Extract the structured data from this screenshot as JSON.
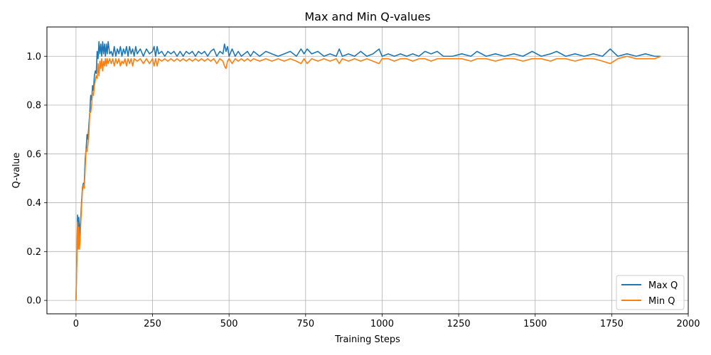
{
  "chart_data": {
    "type": "line",
    "title": "Max and Min Q-values",
    "xlabel": "Training Steps",
    "ylabel": "Q-value",
    "xlim": [
      -95,
      2000
    ],
    "ylim": [
      -0.055,
      1.12
    ],
    "x_ticks": [
      0,
      250,
      500,
      750,
      1000,
      1250,
      1500,
      1750,
      2000
    ],
    "y_ticks": [
      0.0,
      0.2,
      0.4,
      0.6,
      0.8,
      1.0
    ],
    "x_tick_labels": [
      "0",
      "250",
      "500",
      "750",
      "1000",
      "1250",
      "1500",
      "1750",
      "2000"
    ],
    "y_tick_labels": [
      "0.0",
      "0.2",
      "0.4",
      "0.6",
      "0.8",
      "1.0"
    ],
    "grid": true,
    "legend_position": "lower-right",
    "x_max": 1910,
    "series": [
      {
        "name": "Max Q",
        "color": "#1f77b4",
        "points": [
          [
            0,
            0.0
          ],
          [
            3,
            0.2
          ],
          [
            5,
            0.35
          ],
          [
            7,
            0.3
          ],
          [
            9,
            0.34
          ],
          [
            11,
            0.26
          ],
          [
            13,
            0.3
          ],
          [
            15,
            0.33
          ],
          [
            18,
            0.4
          ],
          [
            21,
            0.46
          ],
          [
            24,
            0.48
          ],
          [
            27,
            0.48
          ],
          [
            30,
            0.58
          ],
          [
            33,
            0.62
          ],
          [
            36,
            0.68
          ],
          [
            39,
            0.66
          ],
          [
            42,
            0.72
          ],
          [
            45,
            0.77
          ],
          [
            48,
            0.84
          ],
          [
            51,
            0.82
          ],
          [
            54,
            0.88
          ],
          [
            57,
            0.86
          ],
          [
            60,
            0.92
          ],
          [
            63,
            0.94
          ],
          [
            66,
            0.93
          ],
          [
            69,
            1.02
          ],
          [
            72,
            0.99
          ],
          [
            75,
            1.06
          ],
          [
            78,
            1.01
          ],
          [
            81,
            1.05
          ],
          [
            84,
            1.0
          ],
          [
            87,
            1.06
          ],
          [
            90,
            1.01
          ],
          [
            93,
            1.05
          ],
          [
            96,
            1.0
          ],
          [
            99,
            1.05
          ],
          [
            102,
            1.01
          ],
          [
            105,
            1.06
          ],
          [
            110,
            1.01
          ],
          [
            115,
            1.02
          ],
          [
            120,
            1.0
          ],
          [
            125,
            1.04
          ],
          [
            130,
            1.0
          ],
          [
            135,
            1.03
          ],
          [
            140,
            1.01
          ],
          [
            145,
            1.04
          ],
          [
            150,
            1.0
          ],
          [
            155,
            1.03
          ],
          [
            160,
            1.01
          ],
          [
            165,
            1.04
          ],
          [
            170,
            1.0
          ],
          [
            175,
            1.04
          ],
          [
            180,
            1.01
          ],
          [
            185,
            1.03
          ],
          [
            190,
            1.0
          ],
          [
            195,
            1.04
          ],
          [
            200,
            1.01
          ],
          [
            210,
            1.03
          ],
          [
            220,
            1.0
          ],
          [
            230,
            1.03
          ],
          [
            240,
            1.01
          ],
          [
            250,
            1.02
          ],
          [
            255,
            1.04
          ],
          [
            260,
            1.0
          ],
          [
            265,
            1.04
          ],
          [
            270,
            1.01
          ],
          [
            280,
            1.02
          ],
          [
            290,
            1.0
          ],
          [
            300,
            1.02
          ],
          [
            310,
            1.01
          ],
          [
            320,
            1.02
          ],
          [
            330,
            1.0
          ],
          [
            340,
            1.02
          ],
          [
            350,
            1.0
          ],
          [
            360,
            1.02
          ],
          [
            370,
            1.01
          ],
          [
            380,
            1.02
          ],
          [
            390,
            1.0
          ],
          [
            400,
            1.02
          ],
          [
            410,
            1.01
          ],
          [
            420,
            1.02
          ],
          [
            430,
            1.0
          ],
          [
            440,
            1.02
          ],
          [
            450,
            1.03
          ],
          [
            460,
            1.0
          ],
          [
            470,
            1.02
          ],
          [
            480,
            1.01
          ],
          [
            485,
            1.05
          ],
          [
            490,
            1.02
          ],
          [
            495,
            1.04
          ],
          [
            500,
            1.0
          ],
          [
            510,
            1.03
          ],
          [
            520,
            1.0
          ],
          [
            530,
            1.02
          ],
          [
            540,
            1.0
          ],
          [
            550,
            1.01
          ],
          [
            560,
            1.02
          ],
          [
            570,
            1.0
          ],
          [
            580,
            1.02
          ],
          [
            600,
            1.0
          ],
          [
            620,
            1.02
          ],
          [
            640,
            1.01
          ],
          [
            660,
            1.0
          ],
          [
            680,
            1.01
          ],
          [
            700,
            1.02
          ],
          [
            720,
            1.0
          ],
          [
            735,
            1.03
          ],
          [
            745,
            1.01
          ],
          [
            755,
            1.03
          ],
          [
            770,
            1.01
          ],
          [
            790,
            1.02
          ],
          [
            810,
            1.0
          ],
          [
            830,
            1.01
          ],
          [
            850,
            1.0
          ],
          [
            860,
            1.03
          ],
          [
            870,
            1.0
          ],
          [
            890,
            1.01
          ],
          [
            910,
            1.0
          ],
          [
            930,
            1.02
          ],
          [
            950,
            1.0
          ],
          [
            970,
            1.01
          ],
          [
            990,
            1.03
          ],
          [
            1000,
            1.0
          ],
          [
            1020,
            1.01
          ],
          [
            1040,
            1.0
          ],
          [
            1060,
            1.01
          ],
          [
            1080,
            1.0
          ],
          [
            1100,
            1.01
          ],
          [
            1120,
            1.0
          ],
          [
            1140,
            1.02
          ],
          [
            1160,
            1.01
          ],
          [
            1180,
            1.02
          ],
          [
            1200,
            1.0
          ],
          [
            1230,
            1.0
          ],
          [
            1260,
            1.01
          ],
          [
            1290,
            1.0
          ],
          [
            1310,
            1.02
          ],
          [
            1340,
            1.0
          ],
          [
            1370,
            1.01
          ],
          [
            1400,
            1.0
          ],
          [
            1430,
            1.01
          ],
          [
            1460,
            1.0
          ],
          [
            1490,
            1.02
          ],
          [
            1520,
            1.0
          ],
          [
            1550,
            1.01
          ],
          [
            1570,
            1.02
          ],
          [
            1600,
            1.0
          ],
          [
            1630,
            1.01
          ],
          [
            1660,
            1.0
          ],
          [
            1690,
            1.01
          ],
          [
            1720,
            1.0
          ],
          [
            1745,
            1.03
          ],
          [
            1770,
            1.0
          ],
          [
            1800,
            1.01
          ],
          [
            1830,
            1.0
          ],
          [
            1860,
            1.01
          ],
          [
            1890,
            1.0
          ],
          [
            1910,
            1.0
          ]
        ]
      },
      {
        "name": "Min Q",
        "color": "#ff7f0e",
        "points": [
          [
            0,
            0.0
          ],
          [
            3,
            0.18
          ],
          [
            5,
            0.32
          ],
          [
            7,
            0.21
          ],
          [
            9,
            0.3
          ],
          [
            11,
            0.21
          ],
          [
            13,
            0.24
          ],
          [
            15,
            0.3
          ],
          [
            18,
            0.38
          ],
          [
            21,
            0.45
          ],
          [
            24,
            0.47
          ],
          [
            27,
            0.46
          ],
          [
            30,
            0.54
          ],
          [
            33,
            0.62
          ],
          [
            36,
            0.61
          ],
          [
            39,
            0.64
          ],
          [
            42,
            0.68
          ],
          [
            45,
            0.77
          ],
          [
            48,
            0.77
          ],
          [
            51,
            0.8
          ],
          [
            54,
            0.85
          ],
          [
            57,
            0.84
          ],
          [
            60,
            0.88
          ],
          [
            63,
            0.9
          ],
          [
            66,
            0.92
          ],
          [
            69,
            0.91
          ],
          [
            72,
            0.97
          ],
          [
            75,
            0.92
          ],
          [
            78,
            0.98
          ],
          [
            81,
            0.95
          ],
          [
            84,
            0.99
          ],
          [
            87,
            0.94
          ],
          [
            90,
            0.98
          ],
          [
            93,
            0.96
          ],
          [
            96,
            0.99
          ],
          [
            99,
            0.96
          ],
          [
            102,
            0.99
          ],
          [
            105,
            0.97
          ],
          [
            110,
            0.99
          ],
          [
            115,
            0.97
          ],
          [
            120,
            0.99
          ],
          [
            125,
            0.96
          ],
          [
            130,
            0.99
          ],
          [
            135,
            0.97
          ],
          [
            140,
            0.99
          ],
          [
            145,
            0.96
          ],
          [
            150,
            0.98
          ],
          [
            155,
            0.97
          ],
          [
            160,
            0.99
          ],
          [
            165,
            0.96
          ],
          [
            170,
            0.99
          ],
          [
            175,
            0.97
          ],
          [
            180,
            0.99
          ],
          [
            185,
            0.96
          ],
          [
            190,
            0.99
          ],
          [
            200,
            0.98
          ],
          [
            210,
            0.99
          ],
          [
            220,
            0.97
          ],
          [
            230,
            0.99
          ],
          [
            240,
            0.97
          ],
          [
            250,
            0.99
          ],
          [
            255,
            0.96
          ],
          [
            260,
            0.99
          ],
          [
            265,
            0.96
          ],
          [
            270,
            0.99
          ],
          [
            280,
            0.98
          ],
          [
            290,
            0.99
          ],
          [
            300,
            0.98
          ],
          [
            310,
            0.99
          ],
          [
            320,
            0.98
          ],
          [
            330,
            0.99
          ],
          [
            340,
            0.98
          ],
          [
            350,
            0.99
          ],
          [
            360,
            0.98
          ],
          [
            370,
            0.99
          ],
          [
            380,
            0.98
          ],
          [
            390,
            0.99
          ],
          [
            400,
            0.98
          ],
          [
            410,
            0.99
          ],
          [
            420,
            0.98
          ],
          [
            430,
            0.99
          ],
          [
            440,
            0.98
          ],
          [
            450,
            0.99
          ],
          [
            460,
            0.97
          ],
          [
            470,
            0.99
          ],
          [
            480,
            0.98
          ],
          [
            485,
            0.96
          ],
          [
            490,
            0.95
          ],
          [
            495,
            0.98
          ],
          [
            500,
            0.99
          ],
          [
            510,
            0.97
          ],
          [
            520,
            0.99
          ],
          [
            530,
            0.98
          ],
          [
            540,
            0.99
          ],
          [
            550,
            0.98
          ],
          [
            560,
            0.99
          ],
          [
            570,
            0.98
          ],
          [
            580,
            0.99
          ],
          [
            600,
            0.98
          ],
          [
            620,
            0.99
          ],
          [
            640,
            0.98
          ],
          [
            660,
            0.99
          ],
          [
            680,
            0.98
          ],
          [
            700,
            0.99
          ],
          [
            720,
            0.98
          ],
          [
            735,
            0.97
          ],
          [
            745,
            0.99
          ],
          [
            755,
            0.97
          ],
          [
            770,
            0.99
          ],
          [
            790,
            0.98
          ],
          [
            810,
            0.99
          ],
          [
            830,
            0.98
          ],
          [
            850,
            0.99
          ],
          [
            860,
            0.97
          ],
          [
            870,
            0.99
          ],
          [
            890,
            0.98
          ],
          [
            910,
            0.99
          ],
          [
            930,
            0.98
          ],
          [
            950,
            0.99
          ],
          [
            970,
            0.98
          ],
          [
            990,
            0.97
          ],
          [
            1000,
            0.99
          ],
          [
            1020,
            0.99
          ],
          [
            1040,
            0.98
          ],
          [
            1060,
            0.99
          ],
          [
            1080,
            0.99
          ],
          [
            1100,
            0.98
          ],
          [
            1120,
            0.99
          ],
          [
            1140,
            0.99
          ],
          [
            1160,
            0.98
          ],
          [
            1180,
            0.99
          ],
          [
            1200,
            0.99
          ],
          [
            1230,
            0.99
          ],
          [
            1260,
            0.99
          ],
          [
            1290,
            0.98
          ],
          [
            1310,
            0.99
          ],
          [
            1340,
            0.99
          ],
          [
            1370,
            0.98
          ],
          [
            1400,
            0.99
          ],
          [
            1430,
            0.99
          ],
          [
            1460,
            0.98
          ],
          [
            1490,
            0.99
          ],
          [
            1520,
            0.99
          ],
          [
            1550,
            0.98
          ],
          [
            1570,
            0.99
          ],
          [
            1600,
            0.99
          ],
          [
            1630,
            0.98
          ],
          [
            1660,
            0.99
          ],
          [
            1690,
            0.99
          ],
          [
            1720,
            0.98
          ],
          [
            1745,
            0.97
          ],
          [
            1770,
            0.99
          ],
          [
            1800,
            1.0
          ],
          [
            1830,
            0.99
          ],
          [
            1860,
            0.99
          ],
          [
            1890,
            0.99
          ],
          [
            1910,
            1.0
          ]
        ]
      }
    ]
  }
}
